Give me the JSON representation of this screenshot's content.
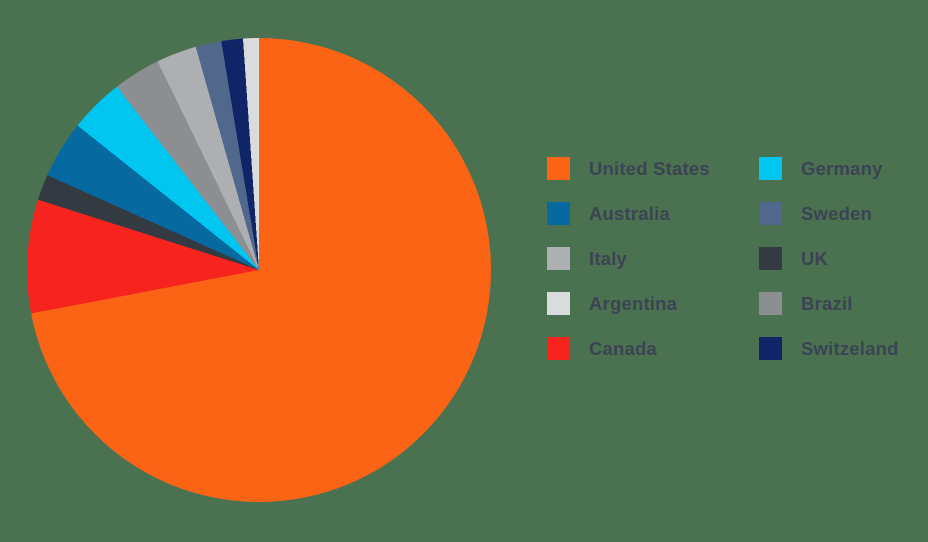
{
  "colors": {
    "background": "#4A7150",
    "legend_text": "#3C4353"
  },
  "chart_data": {
    "type": "pie",
    "title": "",
    "start_angle_deg": 0,
    "direction": "clockwise",
    "value_unit": "percent share (estimated from arc angles; no numeric labels shown)",
    "slices": [
      {
        "label": "United States",
        "value": 72.0,
        "color": "#FB6414"
      },
      {
        "label": "Canada",
        "value": 7.9,
        "color": "#F7231E"
      },
      {
        "label": "UK",
        "value": 1.8,
        "color": "#333A42"
      },
      {
        "label": "Australia",
        "value": 4.0,
        "color": "#06699F"
      },
      {
        "label": "Germany",
        "value": 3.8,
        "color": "#00C6F0"
      },
      {
        "label": "Brazil",
        "value": 3.3,
        "color": "#8C8E92"
      },
      {
        "label": "Italy",
        "value": 2.8,
        "color": "#ADAFB3"
      },
      {
        "label": "Sweden",
        "value": 1.8,
        "color": "#51678C"
      },
      {
        "label": "Switzeland",
        "value": 1.5,
        "color": "#102568"
      },
      {
        "label": "Argentina",
        "value": 1.1,
        "color": "#D9DBDD"
      }
    ]
  },
  "legend": {
    "columns": [
      {
        "items": [
          {
            "label": "United States",
            "color": "#FB6414"
          },
          {
            "label": "Australia",
            "color": "#06699F"
          },
          {
            "label": "Italy",
            "color": "#ADAFB3"
          },
          {
            "label": "Argentina",
            "color": "#D9DBDD"
          },
          {
            "label": "Canada",
            "color": "#F7231E"
          }
        ]
      },
      {
        "items": [
          {
            "label": "Germany",
            "color": "#00C6F0"
          },
          {
            "label": "Sweden",
            "color": "#51678C"
          },
          {
            "label": "UK",
            "color": "#333A42"
          },
          {
            "label": "Brazil",
            "color": "#8C8E92"
          },
          {
            "label": "Switzeland",
            "color": "#102568"
          }
        ]
      }
    ]
  }
}
